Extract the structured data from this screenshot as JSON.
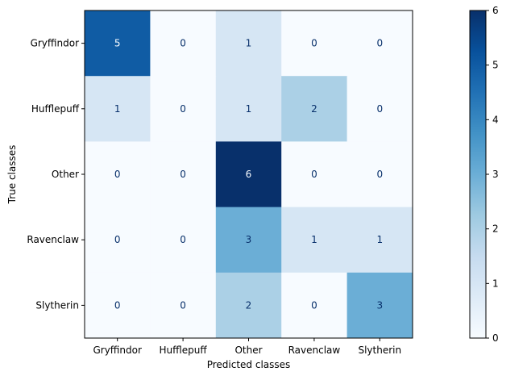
{
  "chart_data": {
    "type": "heatmap",
    "title": "",
    "xlabel": "Predicted classes",
    "ylabel": "True classes",
    "x_categories": [
      "Gryffindor",
      "Hufflepuff",
      "Other",
      "Ravenclaw",
      "Slytherin"
    ],
    "y_categories": [
      "Gryffindor",
      "Hufflepuff",
      "Other",
      "Ravenclaw",
      "Slytherin"
    ],
    "matrix": [
      [
        5,
        0,
        1,
        0,
        0
      ],
      [
        1,
        0,
        1,
        2,
        0
      ],
      [
        0,
        0,
        6,
        0,
        0
      ],
      [
        0,
        0,
        3,
        1,
        1
      ],
      [
        0,
        0,
        2,
        0,
        3
      ]
    ],
    "colormap": "Blues",
    "colorbar": {
      "min": 0,
      "max": 6,
      "ticks": [
        "0",
        "1",
        "2",
        "3",
        "4",
        "5",
        "6"
      ]
    },
    "grid": false
  }
}
